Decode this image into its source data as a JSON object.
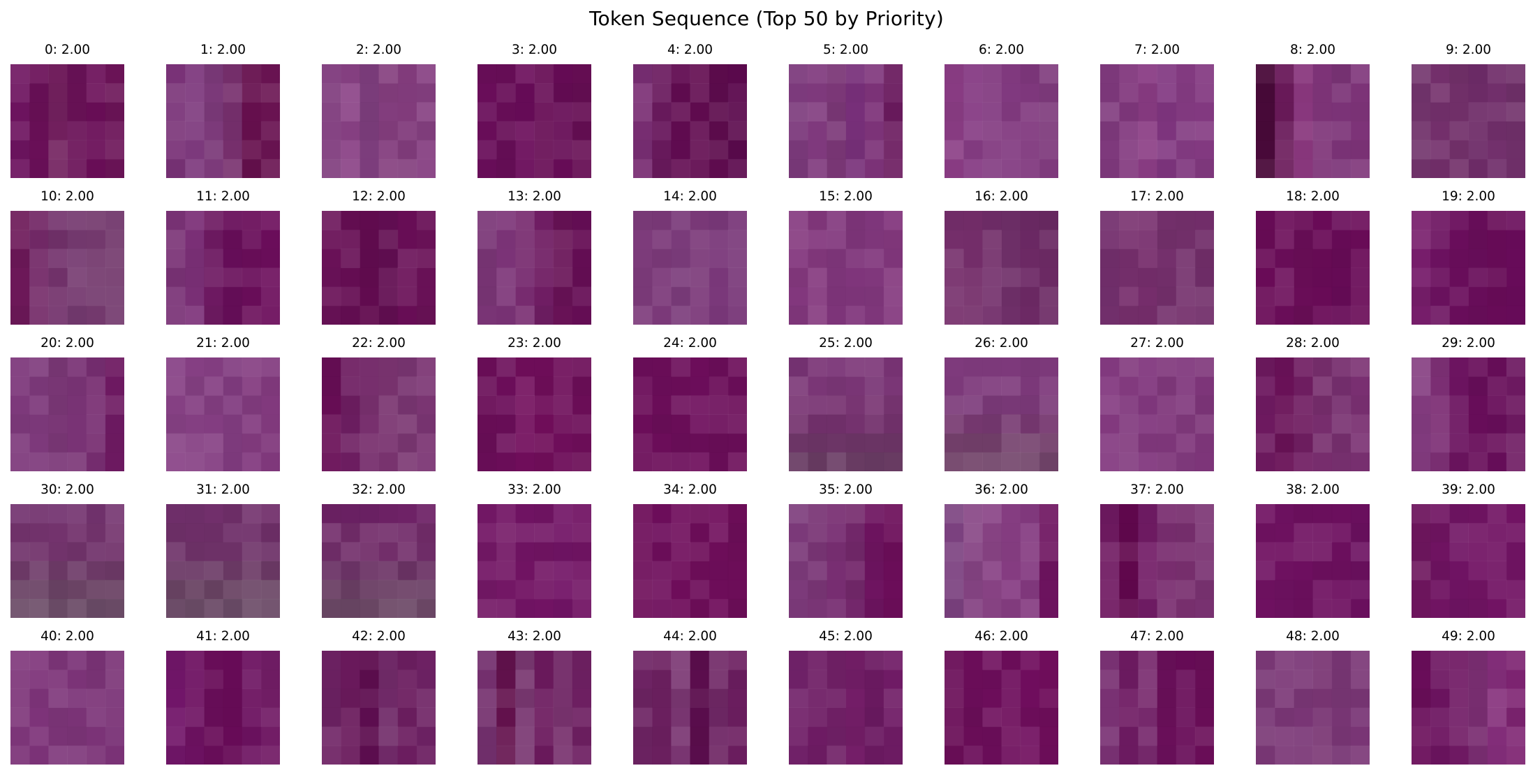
{
  "title": "Token Sequence (Top 50 by Priority)",
  "chart_data": {
    "type": "image-grid",
    "title": "Token Sequence (Top 50 by Priority)",
    "rows": 5,
    "cols": 10,
    "tokens": [
      {
        "index": 0,
        "priority": 2.0,
        "label": "0: 2.00",
        "colors": [
          "#6e1460",
          "#6a1058",
          "#72205e",
          "#6a1258",
          "#6a0e58",
          "#6c1458"
        ],
        "dir": "h"
      },
      {
        "index": 1,
        "priority": 2.0,
        "label": "1: 2.00",
        "colors": [
          "#7a3378",
          "#7e3a7e",
          "#7c3a7a",
          "#78306e",
          "#66104e",
          "#6a1452"
        ],
        "dir": "h"
      },
      {
        "index": 2,
        "priority": 2.0,
        "label": "2: 2.00",
        "colors": [
          "#7e3a7c",
          "#8a4286",
          "#7e3e7e",
          "#843e7e",
          "#823c7c",
          "#864082"
        ],
        "dir": "h"
      },
      {
        "index": 3,
        "priority": 2.0,
        "label": "3: 2.00",
        "colors": [
          "#6a0e5a",
          "#680e58",
          "#6a0c5a",
          "#680e56",
          "#660c56",
          "#660e54"
        ],
        "dir": "h"
      },
      {
        "index": 4,
        "priority": 2.0,
        "label": "4: 2.00",
        "colors": [
          "#7a2e74",
          "#6a1a5e",
          "#620c52",
          "#620c50",
          "#5e0c4e",
          "#5c0a4e"
        ],
        "dir": "h"
      },
      {
        "index": 5,
        "priority": 2.0,
        "label": "5: 2.00",
        "colors": [
          "#7c3a7c",
          "#803a7e",
          "#7c3878",
          "#78307a",
          "#7e347a",
          "#6a1a5e"
        ],
        "dir": "h"
      },
      {
        "index": 6,
        "priority": 2.0,
        "label": "6: 2.00",
        "colors": [
          "#8a3c84",
          "#863c84",
          "#823a80",
          "#823a80",
          "#80387e",
          "#7e3a7c"
        ],
        "dir": "h"
      },
      {
        "index": 7,
        "priority": 2.0,
        "label": "7: 2.00",
        "colors": [
          "#803a7e",
          "#82387e",
          "#8a3c84",
          "#803680",
          "#823a80",
          "#843a82"
        ],
        "dir": "h"
      },
      {
        "index": 8,
        "priority": 2.0,
        "label": "8: 2.00",
        "colors": [
          "#4a0a3a",
          "#6a1a5a",
          "#8a387e",
          "#7e3478",
          "#7c3478",
          "#7e3479"
        ],
        "dir": "h"
      },
      {
        "index": 9,
        "priority": 2.0,
        "label": "9: 2.00",
        "colors": [
          "#72346c",
          "#74306c",
          "#72306a",
          "#6e2c68",
          "#72306c",
          "#70306a"
        ],
        "dir": "h"
      },
      {
        "index": 10,
        "priority": 2.0,
        "label": "10: 2.00",
        "colors": [
          "#6c1858",
          "#742a68",
          "#73326c",
          "#753a70",
          "#743a6e",
          "#72386c"
        ],
        "dir": "h"
      },
      {
        "index": 11,
        "priority": 2.0,
        "label": "11: 2.00",
        "colors": [
          "#7a3276",
          "#7c3078",
          "#6e1a62",
          "#680e5a",
          "#6a0e5a",
          "#6c0e5c"
        ],
        "dir": "h"
      },
      {
        "index": 12,
        "priority": 2.0,
        "label": "12: 2.00",
        "colors": [
          "#6a1258",
          "#660e54",
          "#620c50",
          "#620e52",
          "#680e56",
          "#6a1258"
        ],
        "dir": "h"
      },
      {
        "index": 13,
        "priority": 2.0,
        "label": "13: 2.00",
        "colors": [
          "#7a3576",
          "#7c3478",
          "#782c70",
          "#701e64",
          "#681256",
          "#660e56"
        ],
        "dir": "h"
      },
      {
        "index": 14,
        "priority": 2.0,
        "label": "14: 2.00",
        "colors": [
          "#7e3c7c",
          "#7c3a7a",
          "#7c3c7c",
          "#7c3a7a",
          "#7a387a",
          "#783678"
        ],
        "dir": "h"
      },
      {
        "index": 15,
        "priority": 2.0,
        "label": "15: 2.00",
        "colors": [
          "#84387e",
          "#84387e",
          "#80367c",
          "#80367c",
          "#82387e",
          "#84387e"
        ],
        "dir": "h"
      },
      {
        "index": 16,
        "priority": 2.0,
        "label": "16: 2.00",
        "colors": [
          "#762f6c",
          "#742e6a",
          "#722e6a",
          "#70306a",
          "#6e2a66",
          "#6c2a64"
        ],
        "dir": "h"
      },
      {
        "index": 17,
        "priority": 2.0,
        "label": "17: 2.00",
        "colors": [
          "#74306e",
          "#78306e",
          "#782f6e",
          "#74306c",
          "#74306c",
          "#722e6a"
        ],
        "dir": "h"
      },
      {
        "index": 18,
        "priority": 2.0,
        "label": "18: 2.00",
        "colors": [
          "#6a0c58",
          "#6c0e5a",
          "#6a0e58",
          "#6a0c58",
          "#680c58",
          "#6a0c58"
        ],
        "dir": "h"
      },
      {
        "index": 19,
        "priority": 2.0,
        "label": "19: 2.00",
        "colors": [
          "#781e6c",
          "#6c1260",
          "#6a0e5c",
          "#680e5a",
          "#680c58",
          "#680c5a"
        ],
        "dir": "h"
      },
      {
        "index": 20,
        "priority": 2.0,
        "label": "20: 2.00",
        "colors": [
          "#7e3a7c",
          "#7e3a7c",
          "#7c3878",
          "#7a3476",
          "#782e72",
          "#6e1a62"
        ],
        "dir": "h"
      },
      {
        "index": 21,
        "priority": 2.0,
        "label": "21: 2.00",
        "colors": [
          "#884286",
          "#864084",
          "#843e82",
          "#823c80",
          "#843c80",
          "#823a7e"
        ],
        "dir": "h"
      },
      {
        "index": 22,
        "priority": 2.0,
        "label": "22: 2.00",
        "colors": [
          "#680e56",
          "#6e1e62",
          "#78306e",
          "#7a3470",
          "#7a3672",
          "#7c3674"
        ],
        "dir": "h"
      },
      {
        "index": 23,
        "priority": 2.0,
        "label": "23: 2.00",
        "colors": [
          "#6a0e58",
          "#6c0e5a",
          "#720e5c",
          "#700e5a",
          "#6e0e5a",
          "#6c0e58"
        ],
        "dir": "h"
      },
      {
        "index": 24,
        "priority": 2.0,
        "label": "24: 2.00",
        "colors": [
          "#6c0e5a",
          "#6c0e5a",
          "#6c0e5a",
          "#6e0e5c",
          "#6c0e5a",
          "#6c0e5a"
        ],
        "dir": "h"
      },
      {
        "index": 25,
        "priority": 2.0,
        "label": "25: 2.00",
        "colors": [
          "#7a3476",
          "#7a3676",
          "#7a3674",
          "#74326e",
          "#6e3668",
          "#6a3c64"
        ],
        "dir": "v"
      },
      {
        "index": 26,
        "priority": 2.0,
        "label": "26: 2.00",
        "colors": [
          "#7e3a7c",
          "#7e3a7c",
          "#7c3a7a",
          "#763870",
          "#74406c",
          "#72446a"
        ],
        "dir": "v"
      },
      {
        "index": 27,
        "priority": 2.0,
        "label": "27: 2.00",
        "colors": [
          "#843a80",
          "#823a7e",
          "#82387e",
          "#80387c",
          "#823a7e",
          "#7e367a"
        ],
        "dir": "h"
      },
      {
        "index": 28,
        "priority": 2.0,
        "label": "28: 2.00",
        "colors": [
          "#6e1a60",
          "#6a1258",
          "#701e62",
          "#782e6e",
          "#783070",
          "#7a3072"
        ],
        "dir": "h"
      },
      {
        "index": 29,
        "priority": 2.0,
        "label": "29: 2.00",
        "colors": [
          "#843c80",
          "#7e3076",
          "#6c1460",
          "#680e5a",
          "#680e5a",
          "#6e1a62"
        ],
        "dir": "h"
      },
      {
        "index": 30,
        "priority": 2.0,
        "label": "30: 2.00",
        "colors": [
          "#743470",
          "#74346e",
          "#72346c",
          "#6e3a68",
          "#6c4466",
          "#6c4c68"
        ],
        "dir": "v"
      },
      {
        "index": 31,
        "priority": 2.0,
        "label": "31: 2.00",
        "colors": [
          "#72306c",
          "#70306a",
          "#6e3268",
          "#6c3a66",
          "#6a4464",
          "#6c4c68"
        ],
        "dir": "v"
      },
      {
        "index": 32,
        "priority": 2.0,
        "label": "32: 2.00",
        "colors": [
          "#6e2266",
          "#722c6a",
          "#722e6a",
          "#6c3466",
          "#6a3e64",
          "#6c4866"
        ],
        "dir": "v"
      },
      {
        "index": 33,
        "priority": 2.0,
        "label": "33: 2.00",
        "colors": [
          "#741866",
          "#741866",
          "#721464",
          "#721464",
          "#721466",
          "#721464"
        ],
        "dir": "h"
      },
      {
        "index": 34,
        "priority": 2.0,
        "label": "34: 2.00",
        "colors": [
          "#6e0e5a",
          "#6e0e5c",
          "#700e5c",
          "#6e0e5a",
          "#700e5c",
          "#6e0e5a"
        ],
        "dir": "h"
      },
      {
        "index": 35,
        "priority": 2.0,
        "label": "35: 2.00",
        "colors": [
          "#7c3a7a",
          "#7a3676",
          "#782e72",
          "#74286c",
          "#6e1460",
          "#6c0e5a"
        ],
        "dir": "h"
      },
      {
        "index": 36,
        "priority": 2.0,
        "label": "36: 2.00",
        "colors": [
          "#7c4280",
          "#864484",
          "#8a4486",
          "#883e84",
          "#843a80",
          "#6e1460"
        ],
        "dir": "h"
      },
      {
        "index": 37,
        "priority": 2.0,
        "label": "37: 2.00",
        "colors": [
          "#701a62",
          "#62084e",
          "#721c66",
          "#7a2e70",
          "#7a3070",
          "#7a3272"
        ],
        "dir": "h"
      },
      {
        "index": 38,
        "priority": 2.0,
        "label": "38: 2.00",
        "colors": [
          "#701262",
          "#701262",
          "#6e1060",
          "#6e1060",
          "#6e1060",
          "#6c1060"
        ],
        "dir": "h"
      },
      {
        "index": 39,
        "priority": 2.0,
        "label": "39: 2.00",
        "colors": [
          "#6e165e",
          "#701462",
          "#701464",
          "#721464",
          "#721464",
          "#721464"
        ],
        "dir": "h"
      },
      {
        "index": 40,
        "priority": 2.0,
        "label": "40: 2.00",
        "colors": [
          "#7e367a",
          "#7e347a",
          "#7e367a",
          "#7c3478",
          "#7c3478",
          "#7a3276"
        ],
        "dir": "h"
      },
      {
        "index": 41,
        "priority": 2.0,
        "label": "41: 2.00",
        "colors": [
          "#72166a",
          "#6e1262",
          "#6a0e5a",
          "#680c58",
          "#6c1260",
          "#741e68"
        ],
        "dir": "h"
      },
      {
        "index": 42,
        "priority": 2.0,
        "label": "42: 2.00",
        "colors": [
          "#6e2264",
          "#6a1a5c",
          "#5e0e50",
          "#702a68",
          "#6c1e60",
          "#6e2264"
        ],
        "dir": "h"
      },
      {
        "index": 43,
        "priority": 2.0,
        "label": "43: 2.00",
        "colors": [
          "#74306e",
          "#64124e",
          "#7a3872",
          "#6c1a5e",
          "#7a3470",
          "#6e2062"
        ],
        "dir": "h"
      },
      {
        "index": 44,
        "priority": 2.0,
        "label": "44: 2.00",
        "colors": [
          "#6e2464",
          "#6c2060",
          "#7a3672",
          "#5c0e4e",
          "#702866",
          "#6c1e60"
        ],
        "dir": "h"
      },
      {
        "index": 45,
        "priority": 2.0,
        "label": "45: 2.00",
        "colors": [
          "#72226a",
          "#6e1c64",
          "#702066",
          "#741e68",
          "#6c1a62",
          "#701c66"
        ],
        "dir": "h"
      },
      {
        "index": 46,
        "priority": 2.0,
        "label": "46: 2.00",
        "colors": [
          "#6a0e58",
          "#6c0e5a",
          "#6e0e5c",
          "#6e0e5c",
          "#700e5e",
          "#700e5c"
        ],
        "dir": "h"
      },
      {
        "index": 47,
        "priority": 2.0,
        "label": "47: 2.00",
        "colors": [
          "#7a3274",
          "#701c64",
          "#782a6e",
          "#6a105a",
          "#680c58",
          "#6a0e58"
        ],
        "dir": "h"
      },
      {
        "index": 48,
        "priority": 2.0,
        "label": "48: 2.00",
        "colors": [
          "#7a3876",
          "#7a3676",
          "#7a3676",
          "#7a3674",
          "#783674",
          "#7a3676"
        ],
        "dir": "h"
      },
      {
        "index": 49,
        "priority": 2.0,
        "label": "49: 2.00",
        "colors": [
          "#6a0e5a",
          "#6c1460",
          "#701a64",
          "#7a2e72",
          "#842e7a",
          "#7e2472"
        ],
        "dir": "h"
      }
    ]
  }
}
